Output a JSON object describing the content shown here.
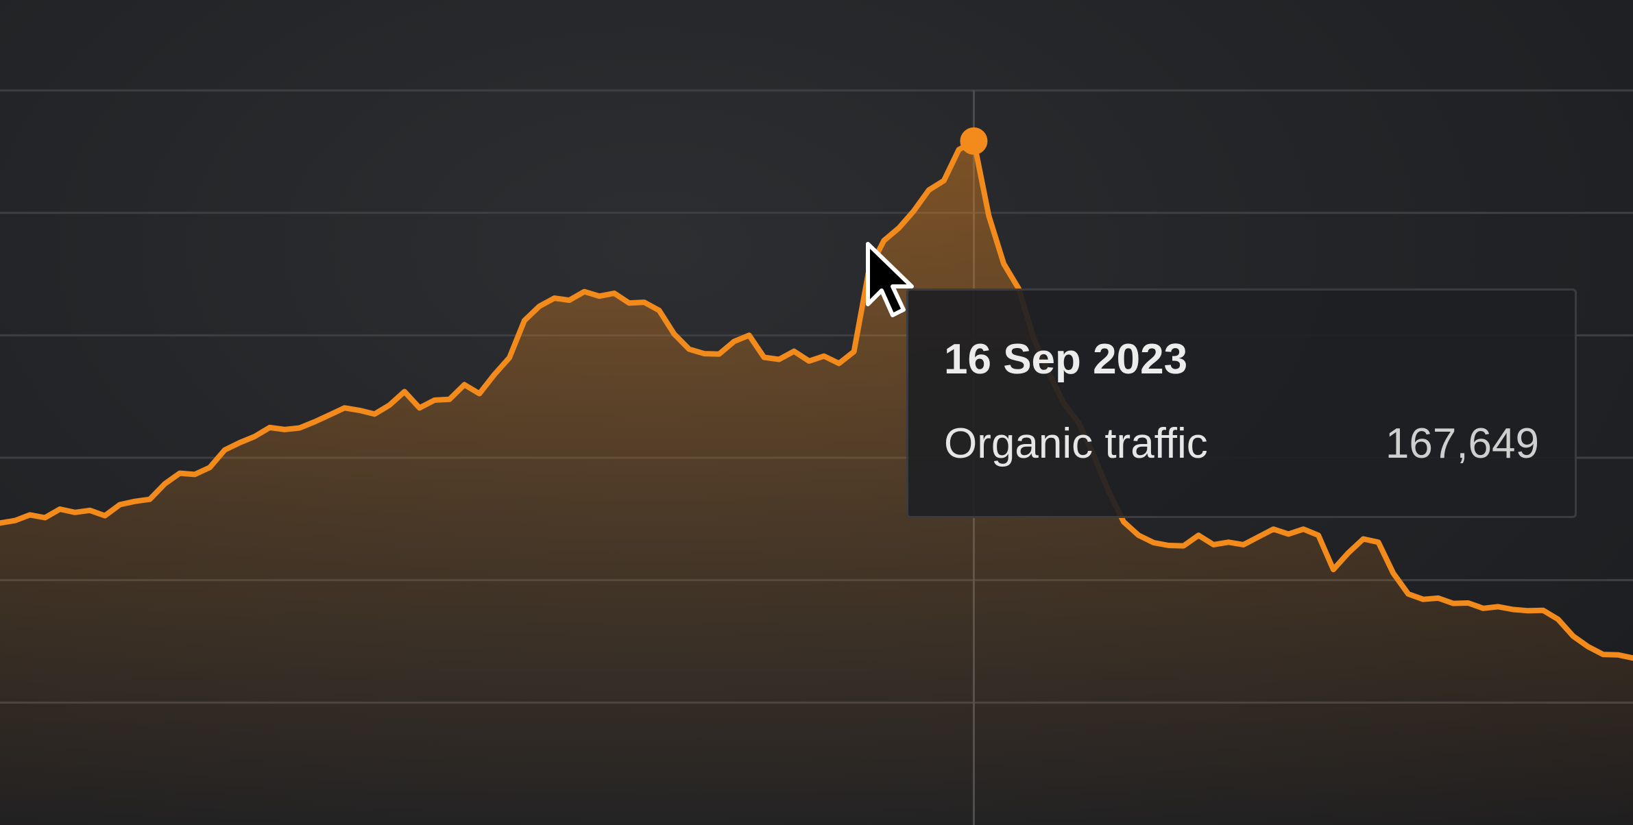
{
  "colors": {
    "line": "#f28a1c",
    "grid": "#3d3f43",
    "crosshair": "#4a4c50",
    "background": "#222427"
  },
  "tooltip": {
    "date": "16 Sep 2023",
    "series_label": "Organic traffic",
    "value": "167,649"
  },
  "chart_data": {
    "type": "area",
    "series": [
      {
        "values": [
          74,
          74.6,
          76,
          75.3,
          77.4,
          76.6,
          77.1,
          75.8,
          78.5,
          79.3,
          79.8,
          83.6,
          86.2,
          85.9,
          87.6,
          91.9,
          93.7,
          95.2,
          97.4,
          96.9,
          97.3,
          98.8,
          100.5,
          102.2,
          101.6,
          100.7,
          102.9,
          106.2,
          102.2,
          104.1,
          104.3,
          107.9,
          105.7,
          110.4,
          114.5,
          123.6,
          127.1,
          129.1,
          128.6,
          130.7,
          129.6,
          130.3,
          127.9,
          128.1,
          126.1,
          120.3,
          116.6,
          115.5,
          115.4,
          118.5,
          120,
          114.6,
          114.1,
          116.1,
          113.7,
          114.9,
          113.1,
          116,
          136,
          143.2,
          146.3,
          150.5,
          155.6,
          157.9,
          165.5,
          167.6,
          149.3,
          137.5,
          131.4,
          119.2,
          110.9,
          103.4,
          98.6,
          90.6,
          81.8,
          74.3,
          71,
          69.2,
          68.5,
          68.4,
          71,
          68.7,
          69.3,
          68.7,
          70.6,
          72.5,
          71.3,
          72.5,
          71,
          62.6,
          66.7,
          70.1,
          69.3,
          61.7,
          56.6,
          55.3,
          55.6,
          54.3,
          54.4,
          53.1,
          53.5,
          52.8,
          52.5,
          52.6,
          50.4,
          46.3,
          43.7,
          41.8,
          41.7,
          40.9
        ]
      }
    ],
    "marker_index": 65,
    "ylim": [
      0,
      180
    ],
    "y_gridlines": [
      30,
      60,
      90,
      120,
      150,
      180
    ],
    "grid": true,
    "legend": "none"
  }
}
